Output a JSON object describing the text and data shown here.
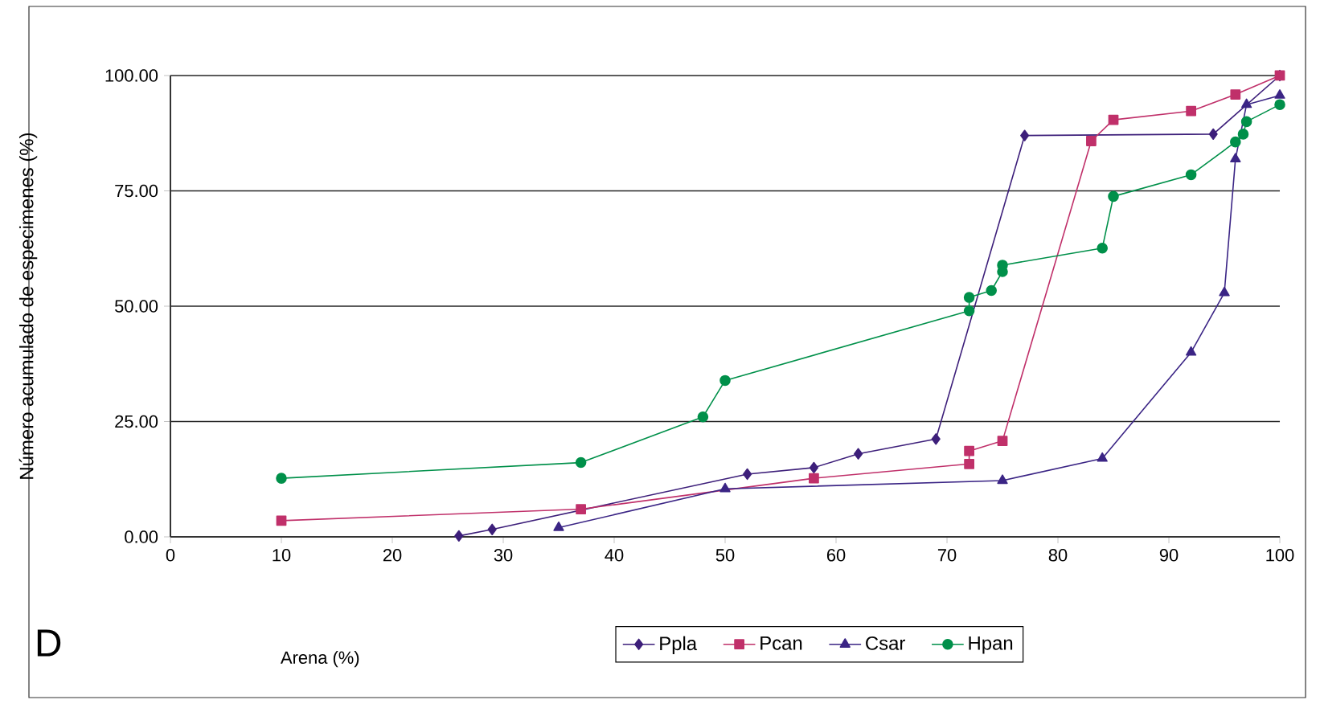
{
  "chart_data": {
    "type": "line",
    "ylabel": "Número acumulado de especimenes (%)",
    "annotations": [
      "D",
      "Arena (%)"
    ],
    "xlim": [
      0,
      100
    ],
    "xticks": [
      0,
      10,
      20,
      30,
      40,
      50,
      60,
      70,
      80,
      90,
      100
    ],
    "ylim": [
      0,
      100
    ],
    "yticks": [
      {
        "value": 0,
        "label": "0.00"
      },
      {
        "value": 25,
        "label": "25.00"
      },
      {
        "value": 50,
        "label": "50.00"
      },
      {
        "value": 75,
        "label": "75.00"
      },
      {
        "value": 100,
        "label": "100.00"
      }
    ],
    "grid": "y",
    "legend": "bottom",
    "line_style": "solid",
    "series": [
      {
        "name": "Ppla",
        "color": "#3d1f7a",
        "marker": "diamond",
        "x": [
          26,
          29,
          52,
          58,
          62,
          69,
          77,
          94,
          100
        ],
        "values": [
          0.2,
          1.6,
          13.6,
          15,
          18,
          21.2,
          87,
          87.3,
          100
        ]
      },
      {
        "name": "Pcan",
        "color": "#c0306a",
        "marker": "square",
        "x": [
          10,
          37,
          58,
          72,
          72,
          75,
          83,
          85,
          92,
          96,
          100
        ],
        "values": [
          3.5,
          6,
          12.7,
          15.8,
          18.6,
          20.8,
          85.8,
          90.4,
          92.3,
          95.9,
          100
        ]
      },
      {
        "name": "Csar",
        "color": "#3b2585",
        "marker": "triangle",
        "x": [
          35,
          50,
          75,
          84,
          92,
          95,
          96,
          97,
          100
        ],
        "values": [
          2,
          10.4,
          12.2,
          17,
          40,
          52.9,
          81.9,
          93.7,
          95.7
        ]
      },
      {
        "name": "Hpan",
        "color": "#00904a",
        "marker": "circle",
        "x": [
          10,
          37,
          48,
          50,
          72,
          72,
          74,
          75,
          75,
          84,
          85,
          92,
          96,
          96.7,
          97,
          100
        ],
        "values": [
          12.7,
          16.1,
          26,
          33.9,
          49,
          51.9,
          53.4,
          57.5,
          58.9,
          62.6,
          73.8,
          78.5,
          85.6,
          87.3,
          90,
          93.7
        ]
      }
    ]
  }
}
